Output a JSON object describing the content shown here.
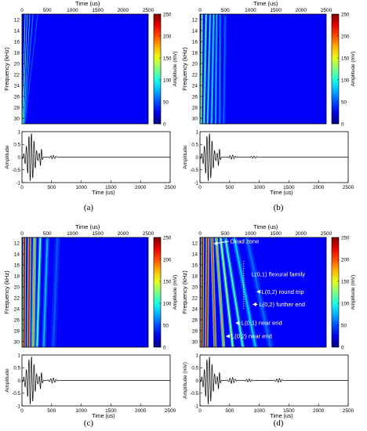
{
  "chart_data": [
    {
      "caption": "(a)",
      "type": "heatmap",
      "xlabel": "Time (us)",
      "ylabel": "Frequency (kHz)",
      "xticks": [
        "0",
        "500",
        "1000",
        "1500",
        "2000",
        "2500"
      ],
      "yticks": [
        "12",
        "14",
        "16",
        "18",
        "20",
        "22",
        "24",
        "26",
        "28",
        "30"
      ],
      "xlim": [
        0,
        2500
      ],
      "ylim": [
        11,
        31
      ],
      "colorbar": {
        "label": "Amplitude (mV)",
        "ticks": [
          "0",
          "50",
          "100",
          "150",
          "200",
          "250"
        ],
        "range": [
          0,
          250
        ]
      },
      "stripes": [
        {
          "t12": 60,
          "t31": 10,
          "amp": 140,
          "w": 10
        },
        {
          "t12": 100,
          "t31": 20,
          "amp": 120,
          "w": 10
        },
        {
          "t12": 150,
          "t31": 35,
          "amp": 80,
          "w": 12
        },
        {
          "t12": 210,
          "t31": 45,
          "amp": 60,
          "w": 12
        },
        {
          "t12": 300,
          "t31": 60,
          "amp": 35,
          "w": 14
        }
      ],
      "annotations": [],
      "waveform": {
        "type": "line",
        "xlabel": "Time (us)",
        "ylabel": "Amplitude",
        "xticks": [
          "0",
          "500",
          "1000",
          "1500",
          "2000",
          "2500"
        ],
        "yticks": [
          "1",
          "0.5",
          "0",
          "-0.5",
          "-1"
        ],
        "xlim": [
          0,
          2500
        ],
        "ylim": [
          -1,
          1
        ],
        "packets": [
          {
            "c": 150,
            "a": 0.95,
            "s": 85,
            "f": 0.023
          },
          {
            "c": 320,
            "a": 0.35,
            "s": 25,
            "f": 0.025
          },
          {
            "c": 520,
            "a": 0.07,
            "s": 60,
            "f": 0.022
          }
        ]
      }
    },
    {
      "caption": "(b)",
      "type": "heatmap",
      "xlabel": "Time (us)",
      "ylabel": "Frequency (kHz)",
      "xticks": [
        "0",
        "500",
        "1000",
        "1500",
        "2000",
        "2500"
      ],
      "yticks": [
        "12",
        "14",
        "16",
        "18",
        "20",
        "22",
        "24",
        "26",
        "28",
        "30"
      ],
      "xlim": [
        0,
        2500
      ],
      "ylim": [
        11,
        31
      ],
      "colorbar": {
        "label": "Amplitude (mV)",
        "ticks": [
          "0",
          "50",
          "100",
          "150",
          "200",
          "250"
        ],
        "range": [
          0,
          250
        ]
      },
      "stripes": [
        {
          "t12": 40,
          "t31": 20,
          "amp": 150,
          "w": 25
        },
        {
          "t12": 120,
          "t31": 80,
          "amp": 110,
          "w": 30
        },
        {
          "t12": 200,
          "t31": 150,
          "amp": 90,
          "w": 30
        },
        {
          "t12": 270,
          "t31": 230,
          "amp": 80,
          "w": 30
        },
        {
          "t12": 330,
          "t31": 310,
          "amp": 70,
          "w": 25
        },
        {
          "t12": 400,
          "t31": 390,
          "amp": 45,
          "w": 30
        },
        {
          "t12": 500,
          "t31": 470,
          "amp": 30,
          "w": 40
        }
      ],
      "annotations": [],
      "waveform": {
        "type": "line",
        "xlabel": "Time (us)",
        "ylabel": "Amplitude",
        "xticks": [
          "0",
          "500",
          "1000",
          "1500",
          "2000",
          "2500"
        ],
        "yticks": [
          "1",
          "0.5",
          "0",
          "-0.5",
          "-1"
        ],
        "xlim": [
          0,
          2500
        ],
        "ylim": [
          -1,
          1
        ],
        "packets": [
          {
            "c": 150,
            "a": 0.95,
            "s": 85,
            "f": 0.023
          },
          {
            "c": 320,
            "a": 0.35,
            "s": 25,
            "f": 0.025
          },
          {
            "c": 540,
            "a": 0.08,
            "s": 60,
            "f": 0.022
          },
          {
            "c": 900,
            "a": 0.04,
            "s": 70,
            "f": 0.022
          }
        ]
      }
    },
    {
      "caption": "(c)",
      "type": "heatmap",
      "xlabel": "Time (us)",
      "ylabel": "Frequency (kHz)",
      "xticks": [
        "0",
        "500",
        "1000",
        "1500",
        "2000",
        "2500"
      ],
      "yticks": [
        "12",
        "14",
        "16",
        "18",
        "20",
        "22",
        "24",
        "26",
        "28",
        "30"
      ],
      "xlim": [
        0,
        2500
      ],
      "ylim": [
        11,
        31
      ],
      "colorbar": {
        "label": "Amplitude (mV)",
        "ticks": [
          "0",
          "50",
          "100",
          "150",
          "200",
          "250"
        ],
        "range": [
          0,
          250
        ]
      },
      "stripes": [
        {
          "t12": 50,
          "t31": 40,
          "amp": 240,
          "w": 40
        },
        {
          "t12": 150,
          "t31": 130,
          "amp": 220,
          "w": 45
        },
        {
          "t12": 250,
          "t31": 220,
          "amp": 170,
          "w": 45
        },
        {
          "t12": 360,
          "t31": 300,
          "amp": 110,
          "w": 40
        },
        {
          "t12": 500,
          "t31": 430,
          "amp": 55,
          "w": 50
        },
        {
          "t12": 700,
          "t31": 620,
          "amp": 25,
          "w": 70
        }
      ],
      "annotations": [],
      "waveform": {
        "type": "line",
        "xlabel": "Time (us)",
        "ylabel": "Amplitude",
        "xticks": [
          "0",
          "500",
          "1000",
          "1500",
          "2000",
          "2500"
        ],
        "yticks": [
          "1",
          "0.5",
          "0",
          "-0.5",
          "-1"
        ],
        "xlim": [
          0,
          2500
        ],
        "ylim": [
          -1,
          1
        ],
        "packets": [
          {
            "c": 150,
            "a": 0.95,
            "s": 85,
            "f": 0.023
          },
          {
            "c": 320,
            "a": 0.35,
            "s": 25,
            "f": 0.025
          },
          {
            "c": 520,
            "a": 0.1,
            "s": 60,
            "f": 0.022
          }
        ]
      }
    },
    {
      "caption": "(d)",
      "type": "heatmap",
      "xlabel": "Time (us)",
      "ylabel": "Frequency (kHz)",
      "xticks": [
        "0",
        "500",
        "1000",
        "1500",
        "2000",
        "2500"
      ],
      "yticks": [
        "12",
        "14",
        "16",
        "18",
        "20",
        "22",
        "24",
        "26",
        "28",
        "30"
      ],
      "xlim": [
        0,
        2500
      ],
      "ylim": [
        11,
        31
      ],
      "colorbar": {
        "label": "Amplitude (mV)",
        "ticks": [
          "0",
          "50",
          "100",
          "150",
          "200",
          "250"
        ],
        "range": [
          0,
          250
        ]
      },
      "stripes": [
        {
          "t12": 50,
          "t31": 40,
          "amp": 240,
          "w": 40
        },
        {
          "t12": 150,
          "t31": 130,
          "amp": 220,
          "w": 45
        },
        {
          "t12": 240,
          "t31": 300,
          "amp": 200,
          "w": 40
        },
        {
          "t12": 330,
          "t31": 470,
          "amp": 170,
          "w": 40
        },
        {
          "t12": 420,
          "t31": 650,
          "amp": 130,
          "w": 40
        },
        {
          "t12": 520,
          "t31": 850,
          "amp": 100,
          "w": 45
        },
        {
          "t12": 700,
          "t31": 1100,
          "amp": 60,
          "w": 60
        },
        {
          "t12": 950,
          "t31": 1400,
          "amp": 30,
          "w": 80
        }
      ],
      "annotations": [
        {
          "text": "Dead zone",
          "time": 600,
          "freq": 11.7,
          "arrow_to": {
            "time": 270,
            "freq": 12.1
          }
        },
        {
          "text": "L(0,1) flexural family",
          "time": 1020,
          "freq": 17.7
        },
        {
          "text": "L(0,2) round trip",
          "time": 1220,
          "freq": 20.9,
          "arrow_to": {
            "time": 1120,
            "freq": 20.9
          }
        },
        {
          "text": "L(0,2) further end",
          "time": 1170,
          "freq": 23.2,
          "arrow_to": {
            "time": 1040,
            "freq": 23.2
          }
        },
        {
          "text": "L(0,1) near end",
          "time": 820,
          "freq": 26.6,
          "arrow_to": {
            "time": 700,
            "freq": 26.6
          }
        },
        {
          "text": "L(0,2) near end",
          "time": 620,
          "freq": 29.0,
          "arrow_to": {
            "time": 510,
            "freq": 29.0
          }
        }
      ],
      "waveform": {
        "type": "line",
        "xlabel": "Time (us)",
        "ylabel": "Amplitude (mV)",
        "xticks": [
          "0",
          "500",
          "1000",
          "1500",
          "2000",
          "2500"
        ],
        "yticks": [
          "1",
          "0.5",
          "0",
          "-0.5",
          "-1"
        ],
        "xlim": [
          0,
          2500
        ],
        "ylim": [
          -1,
          1
        ],
        "packets": [
          {
            "c": 150,
            "a": 0.95,
            "s": 85,
            "f": 0.023
          },
          {
            "c": 320,
            "a": 0.35,
            "s": 25,
            "f": 0.025
          },
          {
            "c": 540,
            "a": 0.12,
            "s": 60,
            "f": 0.022
          },
          {
            "c": 820,
            "a": 0.06,
            "s": 60,
            "f": 0.022
          },
          {
            "c": 1330,
            "a": 0.08,
            "s": 60,
            "f": 0.022
          }
        ]
      }
    }
  ]
}
